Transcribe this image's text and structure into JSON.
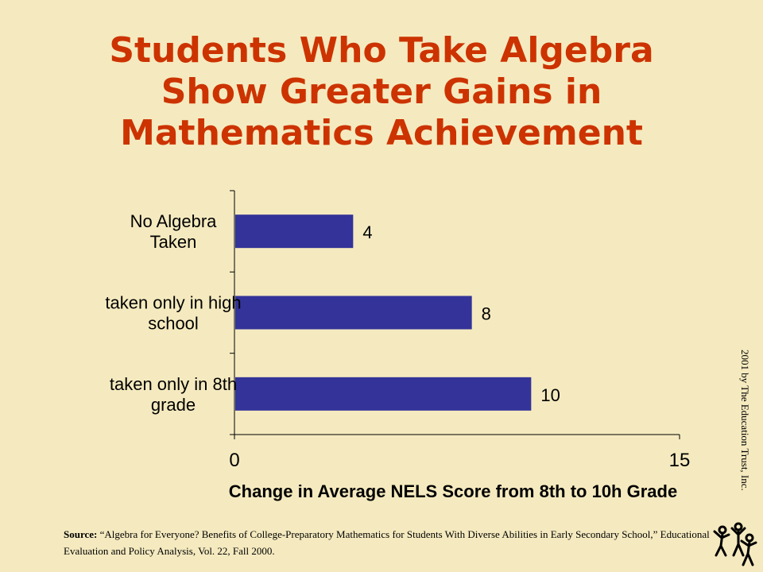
{
  "title_lines": [
    "Students Who Take Algebra",
    "Show Greater Gains in",
    "Mathematics Achievement"
  ],
  "colors": {
    "title": "#cc3300",
    "bar": "#333399",
    "background": "#f5eabf"
  },
  "chart_data": {
    "type": "bar",
    "orientation": "horizontal",
    "categories": [
      "No Algebra Taken",
      "taken only in high school",
      "taken only in 8th grade"
    ],
    "category_label_lines": [
      [
        "No Algebra",
        "Taken"
      ],
      [
        "taken only in high",
        "school"
      ],
      [
        "taken only in 8th",
        "grade"
      ]
    ],
    "values": [
      4,
      8,
      10
    ],
    "data_labels": [
      "4",
      "8",
      "10"
    ],
    "xlabel": "Change in Average NELS Score from 8th to 10h Grade",
    "xlim": [
      0,
      15
    ],
    "xtick_labels": [
      "0",
      "15"
    ],
    "grid": false
  },
  "credit": "2001 by The Education Trust, Inc.",
  "source": {
    "label": "Source:",
    "text": " “Algebra for Everyone? Benefits of College-Preparatory Mathematics for Students With Diverse Abilities in Early Secondary School,” Educational Evaluation and Policy Analysis, Vol. 22, Fall 2000."
  },
  "logo_icon": "people-cheering-icon"
}
